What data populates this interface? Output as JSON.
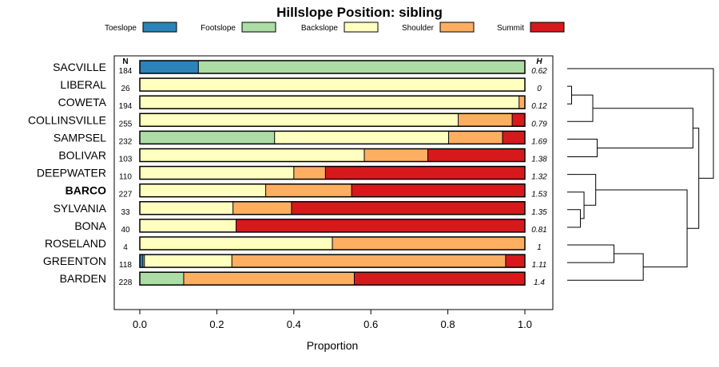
{
  "chart_data": {
    "type": "bar",
    "orientation": "horizontal",
    "stacked": true,
    "title": "Hillslope Position: sibling",
    "xlabel": "Proportion",
    "ylabel": "",
    "xlim": [
      0,
      1
    ],
    "x_ticks": [
      "0.0",
      "0.2",
      "0.4",
      "0.6",
      "0.8",
      "1.0"
    ],
    "n_header": "N",
    "h_header": "H",
    "legend": [
      {
        "name": "Toeslope",
        "color": "#2b83ba"
      },
      {
        "name": "Footslope",
        "color": "#abdda4"
      },
      {
        "name": "Backslope",
        "color": "#ffffbf"
      },
      {
        "name": "Shoulder",
        "color": "#fdae61"
      },
      {
        "name": "Summit",
        "color": "#d7191c"
      }
    ],
    "categories": [
      "SACVILLE",
      "LIBERAL",
      "COWETA",
      "COLLINSVILLE",
      "SAMPSEL",
      "BOLIVAR",
      "DEEPWATER",
      "BARCO",
      "SYLVANIA",
      "BONA",
      "ROSELAND",
      "GREENTON",
      "BARDEN"
    ],
    "highlight": "BARCO",
    "n": [
      "184",
      "26",
      "194",
      "255",
      "232",
      "103",
      "110",
      "227",
      "33",
      "40",
      "4",
      "118",
      "228"
    ],
    "h": [
      "0.62",
      "0",
      "0.12",
      "0.79",
      "1.69",
      "1.38",
      "1.32",
      "1.53",
      "1.35",
      "0.81",
      "1",
      "1.11",
      "1.4"
    ],
    "series": [
      {
        "name": "Toeslope",
        "values": [
          0.152,
          0,
          0,
          0,
          0,
          0,
          0,
          0,
          0,
          0,
          0,
          0.008,
          0
        ]
      },
      {
        "name": "Footslope",
        "values": [
          0.848,
          0,
          0,
          0,
          0.35,
          0,
          0,
          0,
          0,
          0,
          0,
          0.004,
          0.114
        ]
      },
      {
        "name": "Backslope",
        "values": [
          0,
          1.0,
          0.985,
          0.827,
          0.452,
          0.583,
          0.4,
          0.327,
          0.242,
          0.25,
          0.5,
          0.227,
          0
        ]
      },
      {
        "name": "Shoulder",
        "values": [
          0,
          0,
          0.015,
          0.14,
          0.14,
          0.165,
          0.082,
          0.223,
          0.152,
          0,
          0.5,
          0.711,
          0.443
        ]
      },
      {
        "name": "Summit",
        "values": [
          0,
          0,
          0,
          0.033,
          0.058,
          0.252,
          0.518,
          0.45,
          0.606,
          0.75,
          0,
          0.05,
          0.443
        ]
      }
    ],
    "dendrogram": {
      "note": "average-linkage clustering of profiles; merge heights in relative units (0 = leaf)",
      "merges": [
        {
          "id": "m1",
          "left": "LIBERAL",
          "right": "COWETA",
          "height": 0.03
        },
        {
          "id": "m2",
          "left": "SYLVANIA",
          "right": "BONA",
          "height": 0.09
        },
        {
          "id": "m3",
          "left": "BARCO",
          "right": "m2",
          "height": 0.115
        },
        {
          "id": "m4",
          "left": "DEEPWATER",
          "right": "m3",
          "height": 0.195
        },
        {
          "id": "m5",
          "left": "m1",
          "right": "COLLINSVILLE",
          "height": 0.175
        },
        {
          "id": "m6",
          "left": "SAMPSEL",
          "right": "BOLIVAR",
          "height": 0.205
        },
        {
          "id": "m7",
          "left": "ROSELAND",
          "right": "GREENTON",
          "height": 0.32
        },
        {
          "id": "m8",
          "left": "m7",
          "right": "BARDEN",
          "height": 0.52
        },
        {
          "id": "m9",
          "left": "m4",
          "right": "m8",
          "height": 0.82
        },
        {
          "id": "m10",
          "left": "m5",
          "right": "m6",
          "height": 0.86
        },
        {
          "id": "m11",
          "left": "m10",
          "right": "m9",
          "height": 0.9
        },
        {
          "id": "m12",
          "left": "SACVILLE",
          "right": "m11",
          "height": 1.0
        }
      ]
    }
  }
}
